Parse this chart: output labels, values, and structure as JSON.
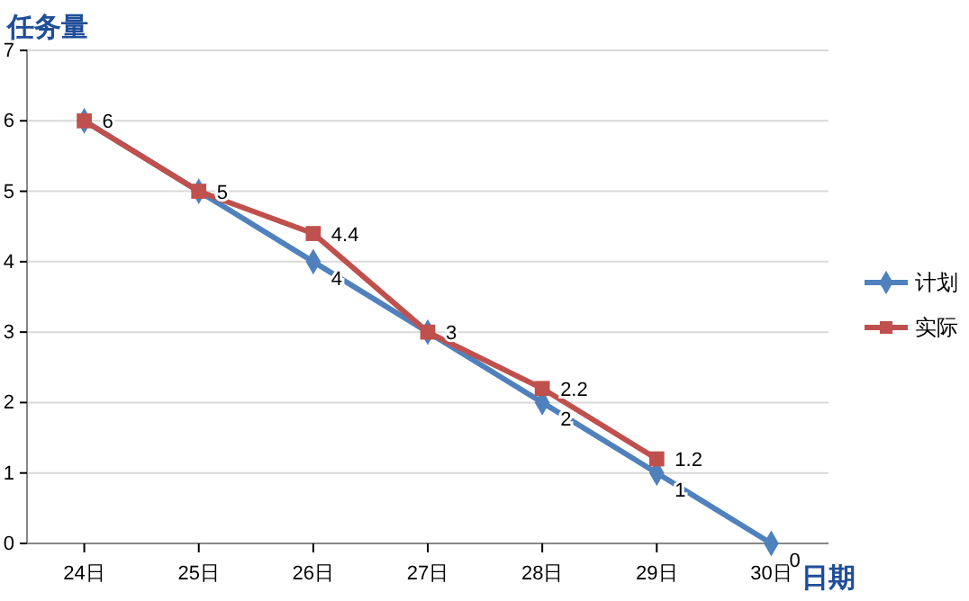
{
  "chart_data": {
    "type": "line",
    "title": "任务量",
    "xlabel": "日期",
    "categories": [
      "24日",
      "25日",
      "26日",
      "27日",
      "28日",
      "29日",
      "30日"
    ],
    "series": [
      {
        "name": "计划",
        "color": "#4f81bd",
        "marker": "diamond",
        "values": [
          6,
          5,
          4,
          3,
          2,
          1,
          0
        ],
        "value_labels": [
          null,
          null,
          "4",
          null,
          "2",
          "1",
          "0"
        ]
      },
      {
        "name": "实际",
        "color": "#c0504d",
        "marker": "square",
        "values": [
          6,
          5,
          4.4,
          3,
          2.2,
          1.2,
          null
        ],
        "value_labels": [
          "6",
          "5",
          "4.4",
          "3",
          "2.2",
          "1.2",
          null
        ]
      }
    ],
    "ylim": [
      0,
      7
    ],
    "yticks": [
      0,
      1,
      2,
      3,
      4,
      5,
      6,
      7
    ],
    "grid": "y",
    "legend": "right"
  }
}
